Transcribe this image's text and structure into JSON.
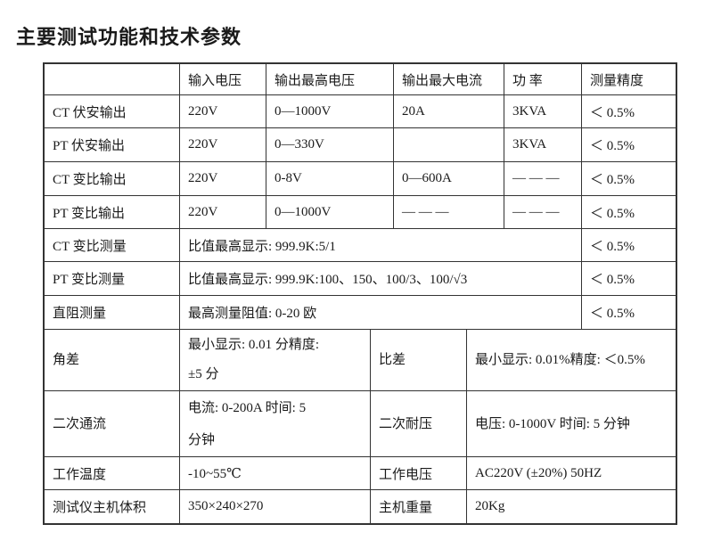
{
  "title": "主要测试功能和技术参数",
  "table": {
    "headers": {
      "blank": "",
      "input_voltage": "输入电压",
      "max_output_voltage": "输出最高电压",
      "max_output_current": "输出最大电流",
      "power": "功 率",
      "accuracy": "测量精度"
    },
    "output_rows": [
      {
        "label": "CT 伏安输出",
        "input_voltage": "220V",
        "max_output_voltage": "0—1000V",
        "max_output_current": "20A",
        "power": "3KVA",
        "accuracy": "＜ 0.5%"
      },
      {
        "label": "PT 伏安输出",
        "input_voltage": "220V",
        "max_output_voltage": "0—330V",
        "max_output_current": "",
        "power": "3KVA",
        "accuracy": "＜ 0.5%"
      },
      {
        "label": "CT 变比输出",
        "input_voltage": "220V",
        "max_output_voltage": "0-8V",
        "max_output_current": "0—600A",
        "power": "— — —",
        "accuracy": "＜ 0.5%"
      },
      {
        "label": "PT 变比输出",
        "input_voltage": "220V",
        "max_output_voltage": "0—1000V",
        "max_output_current": "— — —",
        "power": "— — —",
        "accuracy": "＜ 0.5%"
      }
    ],
    "measure_rows": [
      {
        "label": "CT 变比测量",
        "value": "比值最高显示: 999.9K:5/1",
        "accuracy": "＜ 0.5%"
      },
      {
        "label": "PT 变比测量",
        "value": "比值最高显示: 999.9K:100、150、100/3、100/√3",
        "accuracy": "＜ 0.5%"
      },
      {
        "label": "直阻测量",
        "value": "最高测量阻值: 0-20 欧",
        "accuracy": "＜ 0.5%"
      }
    ],
    "pair_rows": [
      {
        "label1": "角差",
        "value1": "最小显示: 0.01 分精度:\n±5 分",
        "label2": "比差",
        "value2": "最小显示: 0.01%精度: ＜0.5%"
      },
      {
        "label1": "二次通流",
        "value1": "电流: 0-200A 时间: 5\n分钟",
        "label2": "二次耐压",
        "value2": "电压: 0-1000V 时间: 5 分钟"
      },
      {
        "label1": "工作温度",
        "value1": "-10~55℃",
        "label2": "工作电压",
        "value2": "AC220V (±20%) 50HZ"
      },
      {
        "label1": "测试仪主机体积",
        "value1": "350×240×270",
        "label2": "主机重量",
        "value2": "20Kg"
      }
    ]
  }
}
